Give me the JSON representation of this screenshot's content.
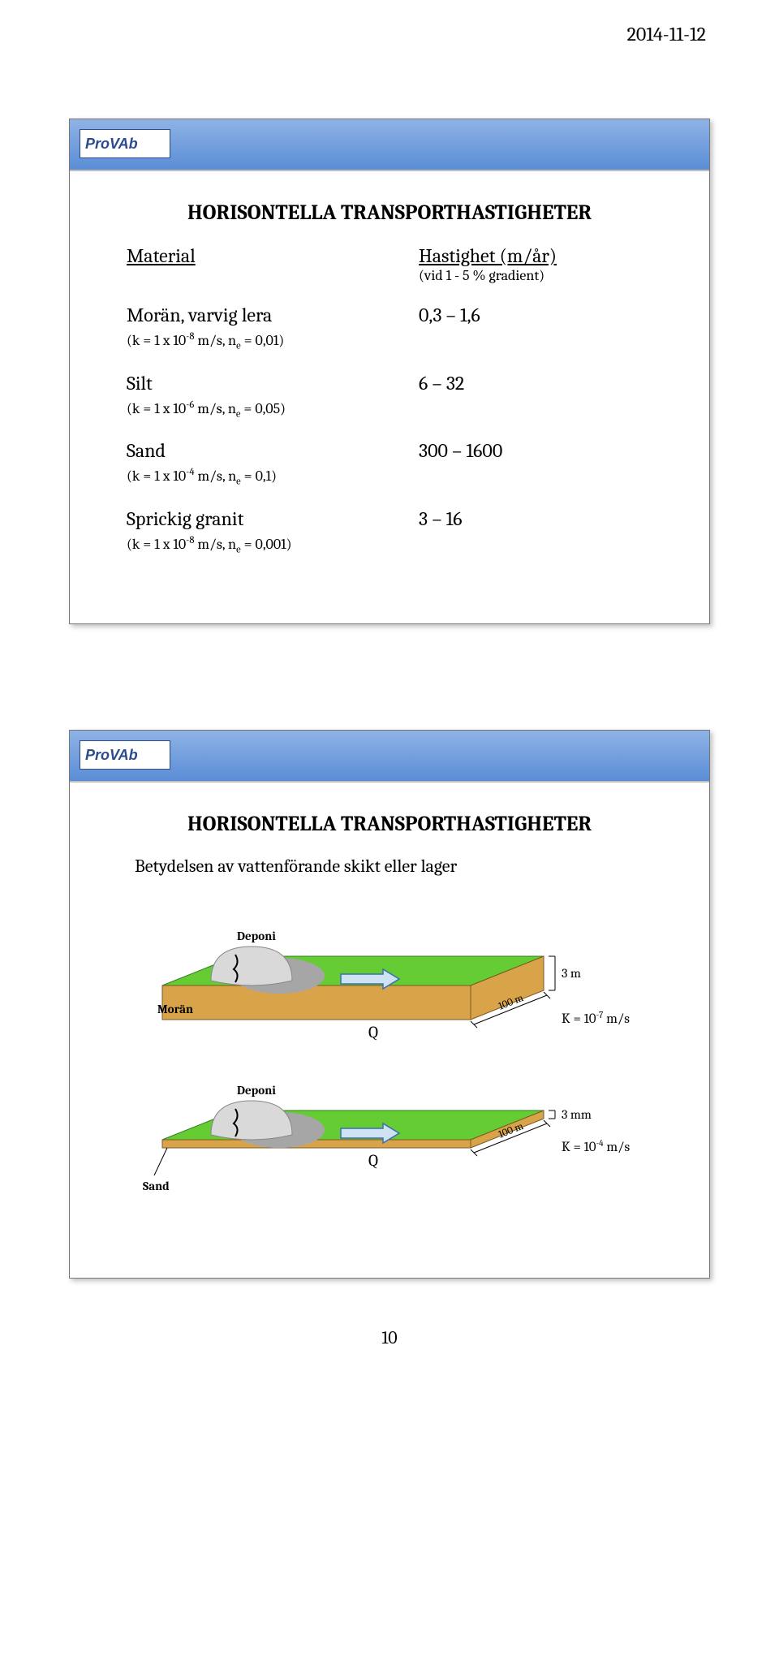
{
  "page": {
    "date": "2014-11-12",
    "number": "10"
  },
  "logo": {
    "pro": "Pro",
    "vab": "VAb"
  },
  "slide1": {
    "title": "HORISONTELLA TRANSPORTHASTIGHETER",
    "head_material": "Material",
    "head_speed": "Hastighet (m/år)",
    "head_sub": "(vid 1 - 5 % gradient)",
    "rows": [
      {
        "mat": "Morän, varvig lera",
        "cond_pre": "(k = 1 x 10",
        "cond_exp": "-8",
        "cond_mid": " m/s, n",
        "cond_sub": "e",
        "cond_post": " = 0,01)",
        "val": "0,3 – 1,6"
      },
      {
        "mat": "Silt",
        "cond_pre": "(k = 1 x 10",
        "cond_exp": "-6",
        "cond_mid": " m/s, n",
        "cond_sub": "e",
        "cond_post": " = 0,05)",
        "val": "6 – 32"
      },
      {
        "mat": "Sand",
        "cond_pre": "(k = 1 x 10",
        "cond_exp": "-4",
        "cond_mid": " m/s, n",
        "cond_sub": "e",
        "cond_post": " = 0,1)",
        "val": "300 – 1600"
      },
      {
        "mat": "Sprickig granit",
        "cond_pre": "(k = 1 x 10",
        "cond_exp": "-8",
        "cond_mid": " m/s, n",
        "cond_sub": "e",
        "cond_post": " = 0,001)",
        "val": "3 – 16"
      }
    ]
  },
  "slide2": {
    "title": "HORISONTELLA TRANSPORTHASTIGHETER",
    "caption": "Betydelsen av vattenförande skikt eller lager",
    "diagrams": [
      {
        "label_left": "Morän",
        "label_mound": "Deponi",
        "label_q": "Q",
        "thickness": "3 m",
        "length": "100 m",
        "k_pre": "K = 10",
        "k_exp": "-7",
        "k_post": " m/s",
        "slab_fill": "#66cc33",
        "slab_side": "#d9a34a",
        "slab_h": 42,
        "left_label_below": false
      },
      {
        "label_left": "Sand",
        "label_mound": "Deponi",
        "label_q": "Q",
        "thickness": "3 mm",
        "length": "100 m",
        "k_pre": "K = 10",
        "k_exp": "-4",
        "k_post": " m/s",
        "slab_fill": "#66cc33",
        "slab_side": "#d9a34a",
        "slab_h": 10,
        "left_label_below": true
      }
    ],
    "colors": {
      "mound_light": "#d9d9d9",
      "mound_dark": "#a6a6a6",
      "arrow_fill": "#cfe2f3",
      "arrow_stroke": "#3b6fb0",
      "slab_stroke": "#2e7d1a"
    }
  }
}
